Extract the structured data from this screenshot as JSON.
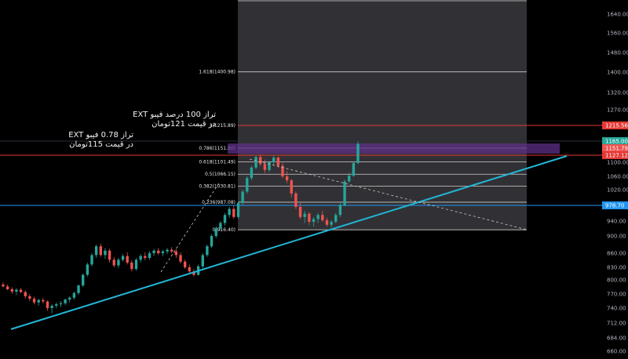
{
  "colors": {
    "background": "#000000",
    "up": "#26a69a",
    "down": "#ef5350",
    "trendline": "#22b6d6",
    "fib_zone": "#3a3a3e",
    "h_red": "#e53935",
    "h_blue": "#2196f3",
    "purple_band": "#5c2f86"
  },
  "annotations": {
    "line1a": "تراز 100 درصد فیبو EXT",
    "line1b": "در قیمت 121تومان",
    "line2a": "تراز 0.78 فیبو EXT",
    "line2b": "در قیمت 115تومان"
  },
  "chart_data": {
    "type": "candlestick",
    "y_ticks": [
      "1640.00",
      "1560.00",
      "1480.00",
      "1400.00",
      "1320.00",
      "1270.00",
      "1215.56",
      "1165.00",
      "1151.79",
      "1127.12",
      "1100.00",
      "1060.00",
      "1020.00",
      "978.70",
      "940.00",
      "900.00",
      "860.00",
      "830.00",
      "800.00",
      "770.00",
      "740.00",
      "712.00",
      "684.00",
      "660.00"
    ],
    "y_range": [
      650,
      1700
    ],
    "price_badges": [
      {
        "label": "1215.56",
        "value": 1215.56,
        "color": "#e53935"
      },
      {
        "label": "1165.00",
        "value": 1165.0,
        "color": "#26a69a"
      },
      {
        "label": "1151.79",
        "value": 1151.79,
        "color": "#ef5350"
      },
      {
        "label": "1127.12",
        "value": 1127.12,
        "color": "#e53935"
      },
      {
        "label": "978.70",
        "value": 978.7,
        "color": "#2196f3"
      }
    ],
    "fib_levels": [
      {
        "label": "1.618(1400.98)",
        "value": 1400.98
      },
      {
        "label": "1(1215.89)",
        "value": 1215.89
      },
      {
        "label": "0.786(1151.80)",
        "value": 1151.8
      },
      {
        "label": "0.618(1101.49)",
        "value": 1101.49
      },
      {
        "label": "0.5(1066.15)",
        "value": 1066.15
      },
      {
        "label": "0.382(1030.81)",
        "value": 1030.81
      },
      {
        "label": "0.236(987.08)",
        "value": 987.08
      },
      {
        "label": "0(916.40)",
        "value": 916.4
      }
    ],
    "candles": [
      [
        790,
        795,
        784,
        786
      ],
      [
        786,
        790,
        778,
        780
      ],
      [
        780,
        784,
        770,
        775
      ],
      [
        775,
        782,
        768,
        779
      ],
      [
        779,
        783,
        772,
        774
      ],
      [
        774,
        778,
        760,
        765
      ],
      [
        765,
        770,
        755,
        760
      ],
      [
        760,
        764,
        748,
        752
      ],
      [
        752,
        760,
        745,
        757
      ],
      [
        757,
        762,
        750,
        754
      ],
      [
        754,
        756,
        735,
        740
      ],
      [
        740,
        748,
        730,
        745
      ],
      [
        745,
        752,
        740,
        748
      ],
      [
        748,
        755,
        742,
        750
      ],
      [
        750,
        760,
        746,
        758
      ],
      [
        758,
        765,
        752,
        762
      ],
      [
        762,
        775,
        758,
        772
      ],
      [
        772,
        790,
        768,
        788
      ],
      [
        788,
        815,
        785,
        812
      ],
      [
        812,
        840,
        808,
        836
      ],
      [
        836,
        860,
        832,
        856
      ],
      [
        856,
        880,
        850,
        876
      ],
      [
        876,
        882,
        852,
        856
      ],
      [
        856,
        872,
        848,
        866
      ],
      [
        866,
        870,
        840,
        846
      ],
      [
        846,
        852,
        830,
        834
      ],
      [
        834,
        850,
        828,
        846
      ],
      [
        846,
        858,
        842,
        854
      ],
      [
        854,
        862,
        836,
        840
      ],
      [
        840,
        845,
        820,
        826
      ],
      [
        826,
        850,
        822,
        846
      ],
      [
        846,
        858,
        840,
        854
      ],
      [
        854,
        862,
        845,
        850
      ],
      [
        850,
        865,
        846,
        860
      ],
      [
        860,
        870,
        854,
        866
      ],
      [
        866,
        872,
        856,
        860
      ],
      [
        860,
        868,
        854,
        864
      ],
      [
        864,
        872,
        858,
        868
      ],
      [
        868,
        874,
        860,
        864
      ],
      [
        864,
        870,
        850,
        856
      ],
      [
        856,
        862,
        838,
        842
      ],
      [
        842,
        846,
        826,
        830
      ],
      [
        830,
        836,
        814,
        820
      ],
      [
        820,
        826,
        808,
        812
      ],
      [
        812,
        836,
        810,
        832
      ],
      [
        832,
        860,
        828,
        856
      ],
      [
        856,
        880,
        852,
        876
      ],
      [
        876,
        905,
        872,
        900
      ],
      [
        900,
        925,
        895,
        920
      ],
      [
        920,
        940,
        914,
        935
      ],
      [
        935,
        960,
        928,
        955
      ],
      [
        955,
        975,
        948,
        970
      ],
      [
        970,
        978,
        945,
        950
      ],
      [
        950,
        990,
        946,
        985
      ],
      [
        985,
        1020,
        980,
        1015
      ],
      [
        1015,
        1060,
        1010,
        1055
      ],
      [
        1055,
        1090,
        1048,
        1085
      ],
      [
        1085,
        1125,
        1080,
        1120
      ],
      [
        1120,
        1130,
        1090,
        1095
      ],
      [
        1095,
        1110,
        1070,
        1078
      ],
      [
        1078,
        1105,
        1072,
        1100
      ],
      [
        1100,
        1125,
        1092,
        1118
      ],
      [
        1118,
        1122,
        1085,
        1090
      ],
      [
        1090,
        1098,
        1055,
        1060
      ],
      [
        1060,
        1075,
        1040,
        1048
      ],
      [
        1048,
        1052,
        1000,
        1010
      ],
      [
        1010,
        1015,
        970,
        975
      ],
      [
        975,
        985,
        945,
        950
      ],
      [
        950,
        965,
        935,
        958
      ],
      [
        958,
        962,
        930,
        938
      ],
      [
        938,
        950,
        925,
        945
      ],
      [
        945,
        960,
        935,
        955
      ],
      [
        955,
        965,
        938,
        942
      ],
      [
        942,
        948,
        925,
        930
      ],
      [
        930,
        942,
        922,
        938
      ],
      [
        938,
        960,
        934,
        955
      ],
      [
        955,
        985,
        950,
        980
      ],
      [
        980,
        1050,
        976,
        1045
      ],
      [
        1045,
        1070,
        1040,
        1062
      ],
      [
        1062,
        1100,
        1058,
        1098
      ],
      [
        1098,
        1165,
        1095,
        1160
      ]
    ]
  }
}
